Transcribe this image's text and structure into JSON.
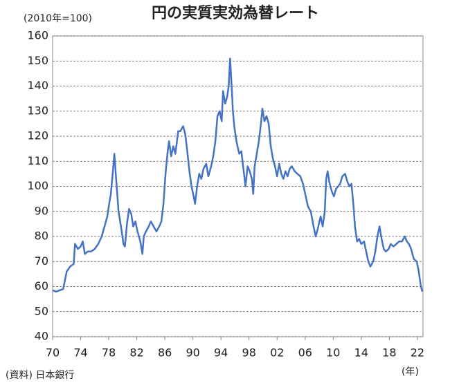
{
  "chart_data": {
    "type": "line",
    "title": "円の実質実効為替レート",
    "y_label": "(2010年=100)",
    "x_unit": "(年)",
    "source": "(資料) 日本銀行",
    "x": [
      1970,
      1970.5,
      1971,
      1971.5,
      1971.8,
      1972,
      1972.5,
      1973,
      1973.2,
      1973.6,
      1974,
      1974.3,
      1974.6,
      1975,
      1975.5,
      1976,
      1976.5,
      1977,
      1977.5,
      1977.8,
      1978,
      1978.3,
      1978.6,
      1978.8,
      1979,
      1979.4,
      1979.8,
      1980.1,
      1980.3,
      1980.6,
      1980.9,
      1981.2,
      1981.5,
      1981.8,
      1982.1,
      1982.5,
      1982.8,
      1983,
      1983.3,
      1983.7,
      1984,
      1984.4,
      1984.8,
      1985.2,
      1985.5,
      1985.8,
      1986.1,
      1986.4,
      1986.6,
      1986.9,
      1987.2,
      1987.5,
      1987.9,
      1988.2,
      1988.6,
      1988.9,
      1989.2,
      1989.5,
      1989.8,
      1990.1,
      1990.3,
      1990.6,
      1990.9,
      1991.2,
      1991.5,
      1991.9,
      1992.2,
      1992.6,
      1992.9,
      1993.2,
      1993.5,
      1993.8,
      1994.1,
      1994.3,
      1994.6,
      1994.9,
      1995.1,
      1995.3,
      1995.5,
      1995.7,
      1995.9,
      1996.2,
      1996.6,
      1996.9,
      1997.2,
      1997.5,
      1997.8,
      1998.1,
      1998.4,
      1998.6,
      1998.8,
      1999.1,
      1999.4,
      1999.7,
      1999.9,
      2000.2,
      2000.5,
      2000.8,
      2001.1,
      2001.4,
      2001.7,
      2002,
      2002.3,
      2002.6,
      2002.9,
      2003.2,
      2003.5,
      2003.8,
      2004.1,
      2004.5,
      2004.9,
      2005.3,
      2005.7,
      2006,
      2006.4,
      2006.8,
      2007.2,
      2007.5,
      2007.8,
      2008.2,
      2008.5,
      2008.8,
      2009,
      2009.2,
      2009.5,
      2009.8,
      2010.1,
      2010.4,
      2010.7,
      2011,
      2011.3,
      2011.7,
      2012,
      2012.3,
      2012.6,
      2012.9,
      2013.1,
      2013.4,
      2013.7,
      2014,
      2014.4,
      2014.7,
      2015,
      2015.3,
      2015.7,
      2016,
      2016.3,
      2016.6,
      2016.9,
      2017.2,
      2017.5,
      2017.9,
      2018.2,
      2018.6,
      2019,
      2019.4,
      2019.8,
      2020.2,
      2020.5,
      2020.8,
      2021.1,
      2021.5,
      2021.9,
      2022.2,
      2022.5,
      2022.7
    ],
    "series": [
      {
        "color": "#4472c4",
        "values": [
          58.5,
          58,
          58.5,
          59,
          63,
          66,
          68,
          69,
          77,
          75,
          76,
          78,
          73,
          74,
          74,
          75,
          77,
          80,
          85,
          88,
          92,
          97,
          106,
          113,
          105,
          90,
          83,
          77,
          76,
          85,
          91,
          89,
          84,
          86,
          82,
          78,
          73,
          80,
          82,
          84,
          86,
          84,
          82,
          84,
          86,
          93,
          105,
          114,
          118,
          112,
          116,
          113,
          122,
          122,
          124,
          121,
          114,
          106,
          100,
          96,
          93,
          100,
          105,
          103,
          107,
          109,
          104,
          108,
          112,
          118,
          128,
          130,
          126,
          138,
          133,
          136,
          140,
          151,
          141,
          130,
          124,
          118,
          113,
          114,
          107,
          100,
          108,
          106,
          103,
          97,
          108,
          113,
          118,
          125,
          131,
          126,
          128,
          125,
          116,
          111,
          108,
          104,
          109,
          105,
          103,
          106,
          104,
          107,
          108,
          106,
          105,
          104,
          101,
          97,
          92,
          90,
          84,
          80,
          83,
          88,
          84,
          90,
          103,
          106,
          101,
          98,
          96,
          99,
          100,
          101,
          104,
          105,
          102,
          100,
          101,
          92,
          84,
          78,
          79,
          77,
          78,
          74,
          70,
          68,
          70,
          74,
          80,
          84,
          79,
          75,
          74,
          75,
          77,
          76,
          77,
          78,
          78,
          80,
          78,
          77,
          75,
          71,
          70,
          66,
          60,
          58
        ]
      }
    ],
    "xlim": [
      1970,
      2022.8
    ],
    "ylim": [
      40,
      160
    ],
    "xticks": [
      {
        "value": 1970,
        "label": "70"
      },
      {
        "value": 1974,
        "label": "74"
      },
      {
        "value": 1978,
        "label": "78"
      },
      {
        "value": 1982,
        "label": "82"
      },
      {
        "value": 1986,
        "label": "86"
      },
      {
        "value": 1990,
        "label": "90"
      },
      {
        "value": 1994,
        "label": "94"
      },
      {
        "value": 1998,
        "label": "98"
      },
      {
        "value": 2002,
        "label": "02"
      },
      {
        "value": 2006,
        "label": "06"
      },
      {
        "value": 2010,
        "label": "10"
      },
      {
        "value": 2014,
        "label": "14"
      },
      {
        "value": 2018,
        "label": "18"
      },
      {
        "value": 2022,
        "label": "22"
      }
    ],
    "yticks": [
      40,
      50,
      60,
      70,
      80,
      90,
      100,
      110,
      120,
      130,
      140,
      150,
      160
    ],
    "grid": true
  }
}
